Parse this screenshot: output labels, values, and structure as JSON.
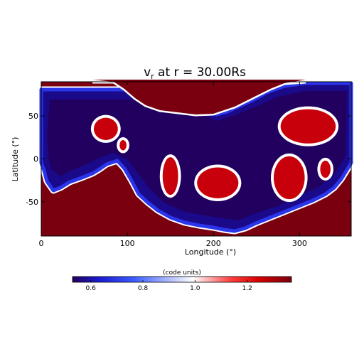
{
  "chart_data": {
    "type": "heatmap",
    "title_parts": {
      "symbol": "v",
      "subscript": "r",
      "rest": " at r = 30.00Rs"
    },
    "xlabel": "Longitude (°)",
    "ylabel": "Latitude (°)",
    "xlim": [
      0,
      360
    ],
    "ylim": [
      -90,
      90
    ],
    "x_ticks": [
      0,
      100,
      200,
      300
    ],
    "y_ticks": [
      -50,
      0,
      50
    ],
    "colorbar": {
      "label": "(code units)",
      "range": [
        0.53,
        1.37
      ],
      "ticks": [
        0.6,
        0.8,
        1.0,
        1.2
      ],
      "colormap": [
        "#22005a",
        "#1a1ad0",
        "#3c5cff",
        "#ffffff",
        "#ff4040",
        "#d80000",
        "#7a0010"
      ]
    },
    "background_color": "#7a0010",
    "grid": false,
    "features": {
      "boundary_level": 1.0,
      "high_speed_value": 1.35,
      "low_speed_value": 0.55,
      "low_speed_band": {
        "northern_boundary_lat_by_lon": [
          [
            0,
            88
          ],
          [
            30,
            88
          ],
          [
            60,
            88
          ],
          [
            100,
            88
          ],
          [
            130,
            86
          ],
          [
            150,
            80
          ],
          [
            170,
            66
          ],
          [
            190,
            60
          ],
          [
            210,
            58
          ],
          [
            220,
            62
          ],
          [
            240,
            70
          ],
          [
            260,
            78
          ],
          [
            280,
            86
          ],
          [
            300,
            88
          ],
          [
            360,
            88
          ]
        ],
        "southern_boundary_lat_by_lon": [
          [
            0,
            -8
          ],
          [
            12,
            -18
          ],
          [
            20,
            -28
          ],
          [
            30,
            -36
          ],
          [
            40,
            -34
          ],
          [
            55,
            -22
          ],
          [
            70,
            -10
          ],
          [
            80,
            -2
          ],
          [
            95,
            -8
          ],
          [
            110,
            -18
          ],
          [
            125,
            -38
          ],
          [
            140,
            -55
          ],
          [
            160,
            -65
          ],
          [
            185,
            -72
          ],
          [
            205,
            -78
          ],
          [
            225,
            -82
          ],
          [
            235,
            -81
          ],
          [
            250,
            -74
          ],
          [
            270,
            -66
          ],
          [
            290,
            -60
          ],
          [
            305,
            -56
          ],
          [
            320,
            -50
          ],
          [
            335,
            -42
          ],
          [
            348,
            -28
          ],
          [
            356,
            -16
          ],
          [
            360,
            -12
          ]
        ]
      },
      "high_speed_islands": [
        {
          "lon": 75,
          "lat": 35,
          "r_lon": 14,
          "r_lat": 13
        },
        {
          "lon": 95,
          "lat": 16,
          "r_lon": 4,
          "r_lat": 6
        },
        {
          "lon": 150,
          "lat": -20,
          "r_lon": 9,
          "r_lat": 22
        },
        {
          "lon": 205,
          "lat": -28,
          "r_lon": 24,
          "r_lat": 18
        },
        {
          "lon": 310,
          "lat": 38,
          "r_lon": 32,
          "r_lat": 20
        },
        {
          "lon": 288,
          "lat": -22,
          "r_lon": 18,
          "r_lat": 25
        },
        {
          "lon": 330,
          "lat": -12,
          "r_lon": 6,
          "r_lat": 10
        }
      ]
    }
  }
}
